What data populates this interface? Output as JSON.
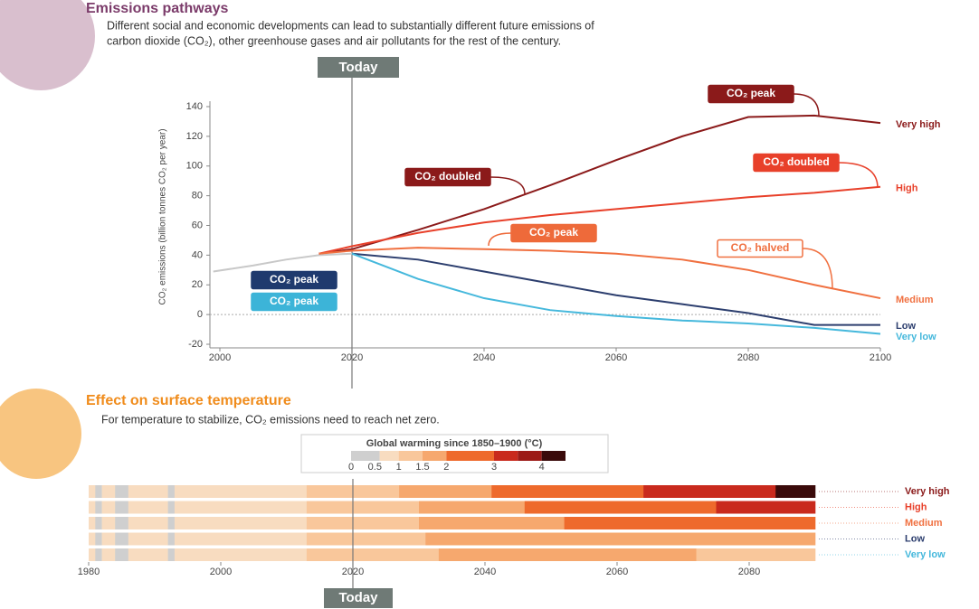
{
  "chart_data": [
    {
      "type": "line",
      "title": "Emissions pathways",
      "subtitle": [
        "Different social and economic developments can lead to substantially different future emissions of",
        "carbon dioxide (CO₂), other greenhouse gases and air pollutants for the rest of the century."
      ],
      "y_label": "CO₂ emissions (billion tonnes CO₂ per year)",
      "today": {
        "label": "Today",
        "x": 2020
      },
      "xlim": [
        2000,
        2100
      ],
      "xticks": [
        2000,
        2020,
        2040,
        2060,
        2080,
        2100
      ],
      "ylim": [
        -20,
        140
      ],
      "yticks": [
        -20,
        0,
        20,
        40,
        60,
        80,
        100,
        120,
        140
      ],
      "zero_line": true,
      "series": [
        {
          "color": "#c8c8c8",
          "x": [
            1999,
            2005,
            2010,
            2015,
            2020
          ],
          "values": [
            29,
            33,
            37,
            40,
            41
          ]
        },
        {
          "name": "Very high",
          "color": "#8b1a1a",
          "x": [
            2015,
            2020,
            2030,
            2040,
            2050,
            2060,
            2070,
            2080,
            2090,
            2100
          ],
          "values": [
            41,
            44,
            57,
            71,
            87,
            104,
            120,
            133,
            134,
            129
          ]
        },
        {
          "name": "High",
          "color": "#e8402a",
          "x": [
            2015,
            2020,
            2030,
            2040,
            2050,
            2060,
            2070,
            2080,
            2090,
            2100
          ],
          "values": [
            41,
            46,
            55,
            62,
            67,
            71,
            75,
            79,
            82,
            86
          ]
        },
        {
          "name": "Medium",
          "color": "#f07040",
          "x": [
            2015,
            2020,
            2030,
            2040,
            2050,
            2060,
            2070,
            2080,
            2090,
            2100
          ],
          "values": [
            41,
            43,
            45,
            44,
            43,
            41,
            37,
            30,
            20,
            11
          ]
        },
        {
          "name": "Low",
          "color": "#2c3e6e",
          "x": [
            2020,
            2030,
            2040,
            2050,
            2060,
            2070,
            2080,
            2090,
            2100
          ],
          "values": [
            41,
            37,
            29,
            21,
            13,
            7,
            1,
            -7,
            -7
          ]
        },
        {
          "name": "Very low",
          "color": "#45b8dc",
          "x": [
            2020,
            2030,
            2040,
            2050,
            2060,
            2070,
            2080,
            2090,
            2100
          ],
          "values": [
            41,
            24,
            11,
            3,
            -1,
            -4,
            -6,
            -9,
            -13
          ]
        }
      ],
      "annotations": [
        {
          "text": "CO₂ peak",
          "color": "#8b1a1a"
        },
        {
          "text": "CO₂ doubled",
          "color": "#8b1a1a"
        },
        {
          "text": "CO₂ doubled",
          "color": "#e8402a"
        },
        {
          "text": "CO₂ peak",
          "color": "#ee6a3a"
        },
        {
          "text": "CO₂ halved",
          "color": "#f07040"
        },
        {
          "text": "CO₂ peak",
          "color": "#1f3a6e"
        },
        {
          "text": "CO₂ peak",
          "color": "#3cb4d8"
        }
      ]
    },
    {
      "type": "stripes",
      "title": "Effect on surface temperature",
      "subtitle": "For temperature to stabilize, CO₂ emissions need to reach net zero.",
      "today": {
        "label": "Today",
        "x": 2020
      },
      "scale": {
        "title": "Global warming since 1850–1900 (°C)",
        "edges": [
          0,
          0.6,
          1,
          1.5,
          2,
          3,
          3.5,
          4,
          4.5
        ],
        "colors": [
          "#cfcfcf",
          "#f8dcc0",
          "#f9c79b",
          "#f6a86e",
          "#ee6a2c",
          "#c92a1d",
          "#9c1b17",
          "#3a0a0a"
        ],
        "ticks": [
          0,
          0.5,
          1,
          1.5,
          2,
          3,
          4
        ]
      },
      "xlim": [
        1980,
        2090
      ],
      "xticks": [
        1980,
        2000,
        2020,
        2040,
        2060,
        2080
      ],
      "history": [
        {
          "from": 1980,
          "to": 1981,
          "warming": 0.7
        },
        {
          "from": 1981,
          "to": 1982,
          "warming": 0.5
        },
        {
          "from": 1982,
          "to": 1984,
          "warming": 0.7
        },
        {
          "from": 1984,
          "to": 1986,
          "warming": 0.5
        },
        {
          "from": 1986,
          "to": 1992,
          "warming": 0.7
        },
        {
          "from": 1992,
          "to": 1993,
          "warming": 0.5
        },
        {
          "from": 1993,
          "to": 2013,
          "warming": 0.8
        }
      ],
      "rows": [
        {
          "name": "Very high",
          "color": "#8b1a1a",
          "segments": [
            {
              "from": 2013,
              "to": 2027,
              "warming": 1.2
            },
            {
              "from": 2027,
              "to": 2041,
              "warming": 1.7
            },
            {
              "from": 2041,
              "to": 2064,
              "warming": 2.5
            },
            {
              "from": 2064,
              "to": 2084,
              "warming": 3.3
            },
            {
              "from": 2084,
              "to": 2090,
              "warming": 4.2
            }
          ]
        },
        {
          "name": "High",
          "color": "#e8402a",
          "segments": [
            {
              "from": 2013,
              "to": 2030,
              "warming": 1.2
            },
            {
              "from": 2030,
              "to": 2046,
              "warming": 1.7
            },
            {
              "from": 2046,
              "to": 2075,
              "warming": 2.5
            },
            {
              "from": 2075,
              "to": 2090,
              "warming": 3.2
            }
          ]
        },
        {
          "name": "Medium",
          "color": "#f07040",
          "segments": [
            {
              "from": 2013,
              "to": 2030,
              "warming": 1.2
            },
            {
              "from": 2030,
              "to": 2052,
              "warming": 1.7
            },
            {
              "from": 2052,
              "to": 2090,
              "warming": 2.4
            }
          ]
        },
        {
          "name": "Low",
          "color": "#2c3e6e",
          "segments": [
            {
              "from": 2013,
              "to": 2031,
              "warming": 1.2
            },
            {
              "from": 2031,
              "to": 2090,
              "warming": 1.7
            }
          ]
        },
        {
          "name": "Very low",
          "color": "#45b8dc",
          "segments": [
            {
              "from": 2013,
              "to": 2033,
              "warming": 1.2
            },
            {
              "from": 2033,
              "to": 2072,
              "warming": 1.7
            },
            {
              "from": 2072,
              "to": 2090,
              "warming": 1.4
            }
          ]
        }
      ]
    }
  ]
}
